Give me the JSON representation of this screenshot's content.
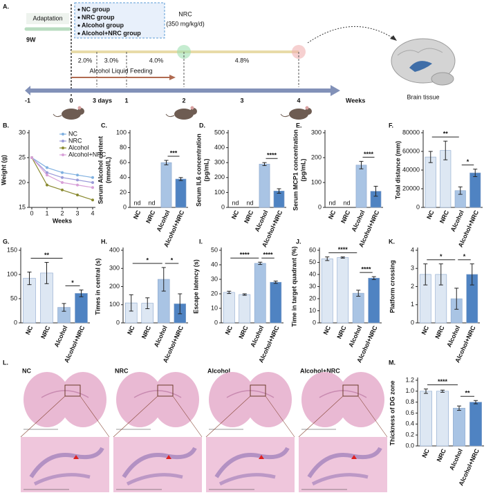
{
  "timeline": {
    "panel": "A.",
    "adaptation": "Adaptation",
    "age": "9W",
    "groups": [
      "NC group",
      "NRC group",
      "Alcohol group",
      "Alcohol+NRC group"
    ],
    "treatment": "NRC",
    "dose": "(350 mg/kg/d)",
    "percentages": [
      "2.0%",
      "3.0%",
      "4.0%",
      "4.8%"
    ],
    "feeding": "Alcohol Liquid Feeding",
    "axis_labels": [
      "-1",
      "0",
      "3 days",
      "1",
      "2",
      "3",
      "4"
    ],
    "axis_title": "Weeks",
    "tissue": "Brain tissue"
  },
  "histology": {
    "panel": "L.",
    "groups": [
      "NC",
      "NRC",
      "Alcohol",
      "Alcohol+NRC"
    ]
  },
  "chart_data": [
    {
      "type": "line",
      "panel": "B.",
      "x_label": "Weeks",
      "y_label": [
        "Weight (g)"
      ],
      "x": [
        0,
        1,
        2,
        3,
        4
      ],
      "xlim": [
        0,
        4
      ],
      "xticks": [
        0,
        1,
        2,
        3,
        4
      ],
      "ylim": [
        15,
        30
      ],
      "yticks": [
        15,
        20,
        25,
        30
      ],
      "legend": "upper right",
      "series": [
        {
          "name": "NC",
          "color": "#7fb0e0",
          "values": [
            25,
            23,
            22,
            21.5,
            21
          ]
        },
        {
          "name": "NRC",
          "color": "#9a9ad8",
          "values": [
            25,
            22,
            21,
            20.5,
            20
          ]
        },
        {
          "name": "Alcohol",
          "color": "#8a8a30",
          "values": [
            25,
            19.5,
            18.5,
            17.5,
            16.5
          ]
        },
        {
          "name": "Alcohol+NRC",
          "color": "#d8a0d8",
          "values": [
            25,
            21.5,
            20,
            19.5,
            19
          ]
        }
      ]
    },
    {
      "type": "bar",
      "panel": "C.",
      "y_label": [
        "Serum Alcohol content",
        "(mmol/L)"
      ],
      "categories": [
        "NC",
        "NRC",
        "Alcohol",
        "Alcohol+NRC"
      ],
      "values": [
        null,
        null,
        60,
        38
      ],
      "errors": [
        null,
        null,
        3,
        2
      ],
      "value_labels": [
        "nd",
        "nd",
        null,
        null
      ],
      "colors": [
        "#dde7f3",
        "#dde7f3",
        "#a9c4e4",
        "#4f83c2"
      ],
      "ylim": [
        0,
        100
      ],
      "yticks": [
        0,
        20,
        40,
        60,
        80,
        100
      ],
      "annotations": [
        {
          "text": "***",
          "pair": [
            "Alcohol",
            "Alcohol+NRC"
          ]
        }
      ]
    },
    {
      "type": "bar",
      "panel": "D.",
      "y_label": [
        "Serum IL6 concentration",
        "(pg/mL)"
      ],
      "categories": [
        "NC",
        "NRC",
        "Alcohol",
        "Alcohol+NRC"
      ],
      "values": [
        null,
        null,
        290,
        110
      ],
      "errors": [
        null,
        null,
        10,
        15
      ],
      "value_labels": [
        "nd",
        "nd",
        null,
        null
      ],
      "colors": [
        "#dde7f3",
        "#dde7f3",
        "#a9c4e4",
        "#4f83c2"
      ],
      "ylim": [
        0,
        500
      ],
      "yticks": [
        0,
        100,
        200,
        300,
        400,
        500
      ],
      "annotations": [
        {
          "text": "****",
          "pair": [
            "Alcohol",
            "Alcohol+NRC"
          ]
        }
      ]
    },
    {
      "type": "bar",
      "panel": "E.",
      "y_label": [
        "Serum MCP1 concentration",
        "(pg/mL)"
      ],
      "categories": [
        "NC",
        "NRC",
        "Alcohol",
        "Alcohol+NRC"
      ],
      "values": [
        null,
        null,
        170,
        65
      ],
      "errors": [
        null,
        null,
        15,
        20
      ],
      "value_labels": [
        "nd",
        "nd",
        null,
        null
      ],
      "colors": [
        "#dde7f3",
        "#dde7f3",
        "#a9c4e4",
        "#4f83c2"
      ],
      "ylim": [
        0,
        300
      ],
      "yticks": [
        0,
        100,
        200,
        300
      ],
      "annotations": [
        {
          "text": "****",
          "pair": [
            "Alcohol",
            "Alcohol+NRC"
          ]
        }
      ]
    },
    {
      "type": "bar",
      "panel": "F.",
      "y_label": [
        "Total distance (mm)"
      ],
      "categories": [
        "NC",
        "NRC",
        "Alcohol",
        "Alcohol+NRC"
      ],
      "values": [
        54000,
        61000,
        18000,
        37000
      ],
      "errors": [
        6000,
        10000,
        4000,
        4000
      ],
      "colors": [
        "#dde7f3",
        "#dde7f3",
        "#a9c4e4",
        "#4f83c2"
      ],
      "ylim": [
        0,
        80000
      ],
      "yticks": [
        0,
        20000,
        40000,
        60000,
        80000
      ],
      "annotations": [
        {
          "text": "**",
          "pair": [
            "NC",
            "Alcohol"
          ]
        },
        {
          "text": "*",
          "pair": [
            "Alcohol",
            "Alcohol+NRC"
          ]
        }
      ]
    },
    {
      "type": "bar",
      "panel": "G.",
      "categories": [
        "NC",
        "NRC",
        "Alcohol",
        "Alcohol+NRC"
      ],
      "values": [
        92,
        103,
        32,
        61
      ],
      "errors": [
        13,
        22,
        8,
        7
      ],
      "colors": [
        "#dde7f3",
        "#dde7f3",
        "#a9c4e4",
        "#4f83c2"
      ],
      "ylim": [
        0,
        150
      ],
      "yticks": [
        0,
        50,
        100,
        150
      ],
      "annotations": [
        {
          "text": "**",
          "pair": [
            "NC",
            "Alcohol"
          ]
        },
        {
          "text": "*",
          "pair": [
            "Alcohol",
            "Alcohol+NRC"
          ]
        }
      ]
    },
    {
      "type": "bar",
      "panel": "H.",
      "y_label": [
        "Times in central (s)"
      ],
      "categories": [
        "NC",
        "NRC",
        "Alcohol",
        "Alcohol+NRC"
      ],
      "values": [
        110,
        108,
        240,
        105
      ],
      "errors": [
        45,
        30,
        65,
        55
      ],
      "colors": [
        "#dde7f3",
        "#dde7f3",
        "#a9c4e4",
        "#4f83c2"
      ],
      "ylim": [
        0,
        400
      ],
      "yticks": [
        0,
        100,
        200,
        300,
        400
      ],
      "annotations": [
        {
          "text": "*",
          "pair": [
            "NC",
            "Alcohol"
          ]
        },
        {
          "text": "*",
          "pair": [
            "Alcohol",
            "Alcohol+NRC"
          ]
        }
      ]
    },
    {
      "type": "bar",
      "panel": "I.",
      "y_label": [
        "Escape latency (s)"
      ],
      "categories": [
        "NC",
        "NRC",
        "Alcohol",
        "Alcohol+NRC"
      ],
      "values": [
        21,
        19.5,
        41,
        28
      ],
      "errors": [
        0.8,
        0.5,
        0.8,
        0.8
      ],
      "colors": [
        "#dde7f3",
        "#dde7f3",
        "#a9c4e4",
        "#4f83c2"
      ],
      "ylim": [
        0,
        50
      ],
      "yticks": [
        0,
        10,
        20,
        30,
        40,
        50
      ],
      "annotations": [
        {
          "text": "****",
          "pair": [
            "NC",
            "Alcohol"
          ]
        },
        {
          "text": "****",
          "pair": [
            "Alcohol",
            "Alcohol+NRC"
          ]
        }
      ]
    },
    {
      "type": "bar",
      "panel": "J.",
      "y_label": [
        "Time in target quadrant (%)"
      ],
      "categories": [
        "NC",
        "NRC",
        "Alcohol",
        "Alcohol+NRC"
      ],
      "values": [
        53,
        54,
        24.5,
        37
      ],
      "errors": [
        1.5,
        0.5,
        2.5,
        1.2
      ],
      "colors": [
        "#dde7f3",
        "#dde7f3",
        "#a9c4e4",
        "#4f83c2"
      ],
      "ylim": [
        0,
        60
      ],
      "yticks": [
        0,
        10,
        20,
        30,
        40,
        50,
        60
      ],
      "annotations": [
        {
          "text": "****",
          "pair": [
            "NC",
            "Alcohol"
          ]
        },
        {
          "text": "****",
          "pair": [
            "Alcohol",
            "Alcohol+NRC"
          ]
        }
      ]
    },
    {
      "type": "bar",
      "panel": "K.",
      "y_label": [
        "Platform crossing"
      ],
      "categories": [
        "NC",
        "NRC",
        "Alcohol",
        "Alcohol+NRC"
      ],
      "values": [
        2.67,
        2.67,
        1.33,
        2.67
      ],
      "errors": [
        0.58,
        0.58,
        0.58,
        0.58
      ],
      "colors": [
        "#dde7f3",
        "#dde7f3",
        "#a9c4e4",
        "#4f83c2"
      ],
      "ylim": [
        0,
        4
      ],
      "yticks": [
        0,
        1,
        2,
        3,
        4
      ],
      "annotations": [
        {
          "text": "*",
          "pair": [
            "NC",
            "Alcohol"
          ]
        },
        {
          "text": "*",
          "pair": [
            "Alcohol",
            "Alcohol+NRC"
          ]
        }
      ]
    },
    {
      "type": "bar",
      "panel": "M.",
      "y_label": [
        "Thickness of DG zone"
      ],
      "categories": [
        "NC",
        "NRC",
        "Alcohol",
        "Alcohol+NRC"
      ],
      "values": [
        1.0,
        1.0,
        0.69,
        0.8
      ],
      "errors": [
        0.04,
        0.02,
        0.04,
        0.03
      ],
      "colors": [
        "#dde7f3",
        "#dde7f3",
        "#a9c4e4",
        "#4f83c2"
      ],
      "ylim": [
        0,
        1.2
      ],
      "yticks": [
        {
          "value": 0,
          "label": "0.0"
        },
        0.2,
        0.4,
        0.6,
        0.8,
        {
          "value": 1,
          "label": "1.0"
        },
        1.2
      ],
      "annotations": [
        {
          "text": "****",
          "pair": [
            "NC",
            "Alcohol"
          ]
        },
        {
          "text": "**",
          "pair": [
            "Alcohol",
            "Alcohol+NRC"
          ]
        }
      ]
    }
  ]
}
